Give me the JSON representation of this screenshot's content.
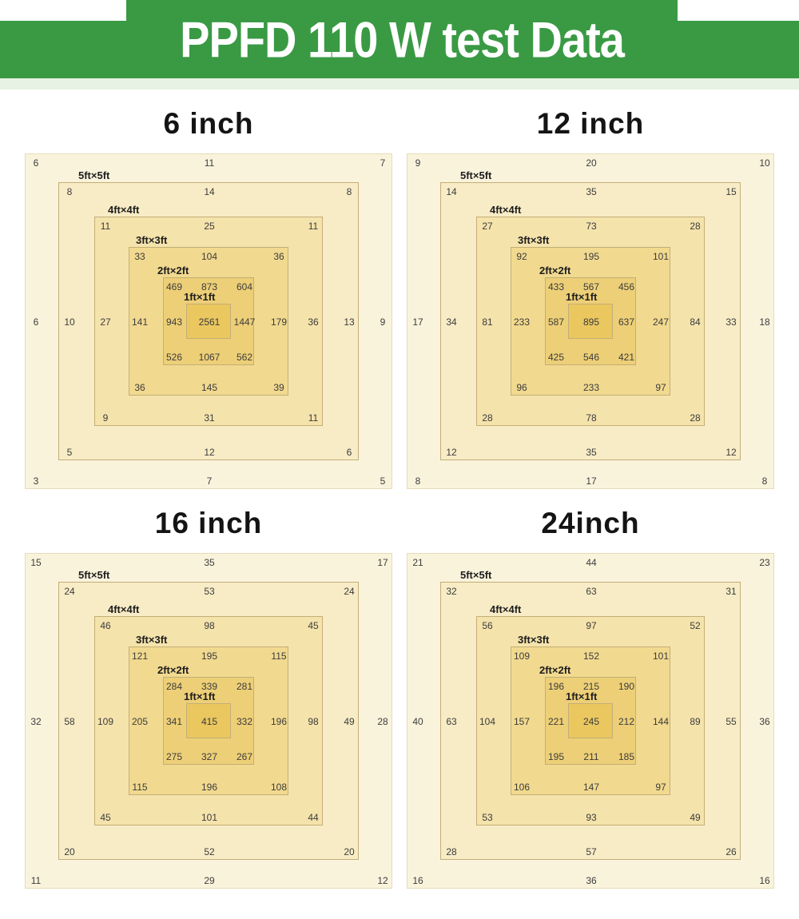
{
  "header": {
    "title": "PPFD 110 W test Data"
  },
  "colors": {
    "banner_green": "#3a9a44",
    "banner_light_strip": "#e7f1e4",
    "ring_border": "#c3ae77",
    "ring_colors": [
      "#faf3dc",
      "#f8ecc6",
      "#f5e3ac",
      "#f1d98f",
      "#edcf77",
      "#eac75f"
    ]
  },
  "chart_data": {
    "type": "heatmap",
    "title": "PPFD 110 W test Data",
    "layout_note": "Four panels, one per hanging height; each panel is nested squares (5ft to 1ft coverage areas) with PPFD readings at corners, edge midpoints and center",
    "panels": [
      {
        "title": "6 inch",
        "rings": [
          {
            "name": "outer",
            "label": "",
            "tl": "6",
            "t": "11",
            "tr": "7",
            "l": "6",
            "r": "9",
            "bl": "3",
            "b": "7",
            "br": "5"
          },
          {
            "name": "5ft",
            "label": "5ft×5ft",
            "tl": "8",
            "t": "14",
            "tr": "8",
            "l": "10",
            "r": "13",
            "bl": "5",
            "b": "12",
            "br": "6"
          },
          {
            "name": "4ft",
            "label": "4ft×4ft",
            "tl": "11",
            "t": "25",
            "tr": "11",
            "l": "27",
            "r": "36",
            "bl": "9",
            "b": "31",
            "br": "11"
          },
          {
            "name": "3ft",
            "label": "3ft×3ft",
            "tl": "33",
            "t": "104",
            "tr": "36",
            "l": "141",
            "r": "179",
            "bl": "36",
            "b": "145",
            "br": "39"
          },
          {
            "name": "2ft",
            "label": "2ft×2ft",
            "tl": "469",
            "t": "873",
            "tr": "604",
            "l": "943",
            "r": "1447",
            "bl": "526",
            "b": "1067",
            "br": "562"
          },
          {
            "name": "1ft",
            "label": "1ft×1ft",
            "center": "2561"
          }
        ]
      },
      {
        "title": "12 inch",
        "rings": [
          {
            "name": "outer",
            "label": "",
            "tl": "9",
            "t": "20",
            "tr": "10",
            "l": "17",
            "r": "18",
            "bl": "8",
            "b": "17",
            "br": "8"
          },
          {
            "name": "5ft",
            "label": "5ft×5ft",
            "tl": "14",
            "t": "35",
            "tr": "15",
            "l": "34",
            "r": "33",
            "bl": "12",
            "b": "35",
            "br": "12"
          },
          {
            "name": "4ft",
            "label": "4ft×4ft",
            "tl": "27",
            "t": "73",
            "tr": "28",
            "l": "81",
            "r": "84",
            "bl": "28",
            "b": "78",
            "br": "28"
          },
          {
            "name": "3ft",
            "label": "3ft×3ft",
            "tl": "92",
            "t": "195",
            "tr": "101",
            "l": "233",
            "r": "247",
            "bl": "96",
            "b": "233",
            "br": "97"
          },
          {
            "name": "2ft",
            "label": "2ft×2ft",
            "tl": "433",
            "t": "567",
            "tr": "456",
            "l": "587",
            "r": "637",
            "bl": "425",
            "b": "546",
            "br": "421"
          },
          {
            "name": "1ft",
            "label": "1ft×1ft",
            "center": "895"
          }
        ]
      },
      {
        "title": "16 inch",
        "rings": [
          {
            "name": "outer",
            "label": "",
            "tl": "15",
            "t": "35",
            "tr": "17",
            "l": "32",
            "r": "28",
            "bl": "11",
            "b": "29",
            "br": "12"
          },
          {
            "name": "5ft",
            "label": "5ft×5ft",
            "tl": "24",
            "t": "53",
            "tr": "24",
            "l": "58",
            "r": "49",
            "bl": "20",
            "b": "52",
            "br": "20"
          },
          {
            "name": "4ft",
            "label": "4ft×4ft",
            "tl": "46",
            "t": "98",
            "tr": "45",
            "l": "109",
            "r": "98",
            "bl": "45",
            "b": "101",
            "br": "44"
          },
          {
            "name": "3ft",
            "label": "3ft×3ft",
            "tl": "121",
            "t": "195",
            "tr": "115",
            "l": "205",
            "r": "196",
            "bl": "115",
            "b": "196",
            "br": "108"
          },
          {
            "name": "2ft",
            "label": "2ft×2ft",
            "tl": "284",
            "t": "339",
            "tr": "281",
            "l": "341",
            "r": "332",
            "bl": "275",
            "b": "327",
            "br": "267"
          },
          {
            "name": "1ft",
            "label": "1ft×1ft",
            "center": "415"
          }
        ]
      },
      {
        "title": "24inch",
        "rings": [
          {
            "name": "outer",
            "label": "",
            "tl": "21",
            "t": "44",
            "tr": "23",
            "l": "40",
            "r": "36",
            "bl": "16",
            "b": "36",
            "br": "16"
          },
          {
            "name": "5ft",
            "label": "5ft×5ft",
            "tl": "32",
            "t": "63",
            "tr": "31",
            "l": "63",
            "r": "55",
            "bl": "28",
            "b": "57",
            "br": "26"
          },
          {
            "name": "4ft",
            "label": "4ft×4ft",
            "tl": "56",
            "t": "97",
            "tr": "52",
            "l": "104",
            "r": "89",
            "bl": "53",
            "b": "93",
            "br": "49"
          },
          {
            "name": "3ft",
            "label": "3ft×3ft",
            "tl": "109",
            "t": "152",
            "tr": "101",
            "l": "157",
            "r": "144",
            "bl": "106",
            "b": "147",
            "br": "97"
          },
          {
            "name": "2ft",
            "label": "2ft×2ft",
            "tl": "196",
            "t": "215",
            "tr": "190",
            "l": "221",
            "r": "212",
            "bl": "195",
            "b": "211",
            "br": "185"
          },
          {
            "name": "1ft",
            "label": "1ft×1ft",
            "center": "245"
          }
        ]
      }
    ]
  }
}
